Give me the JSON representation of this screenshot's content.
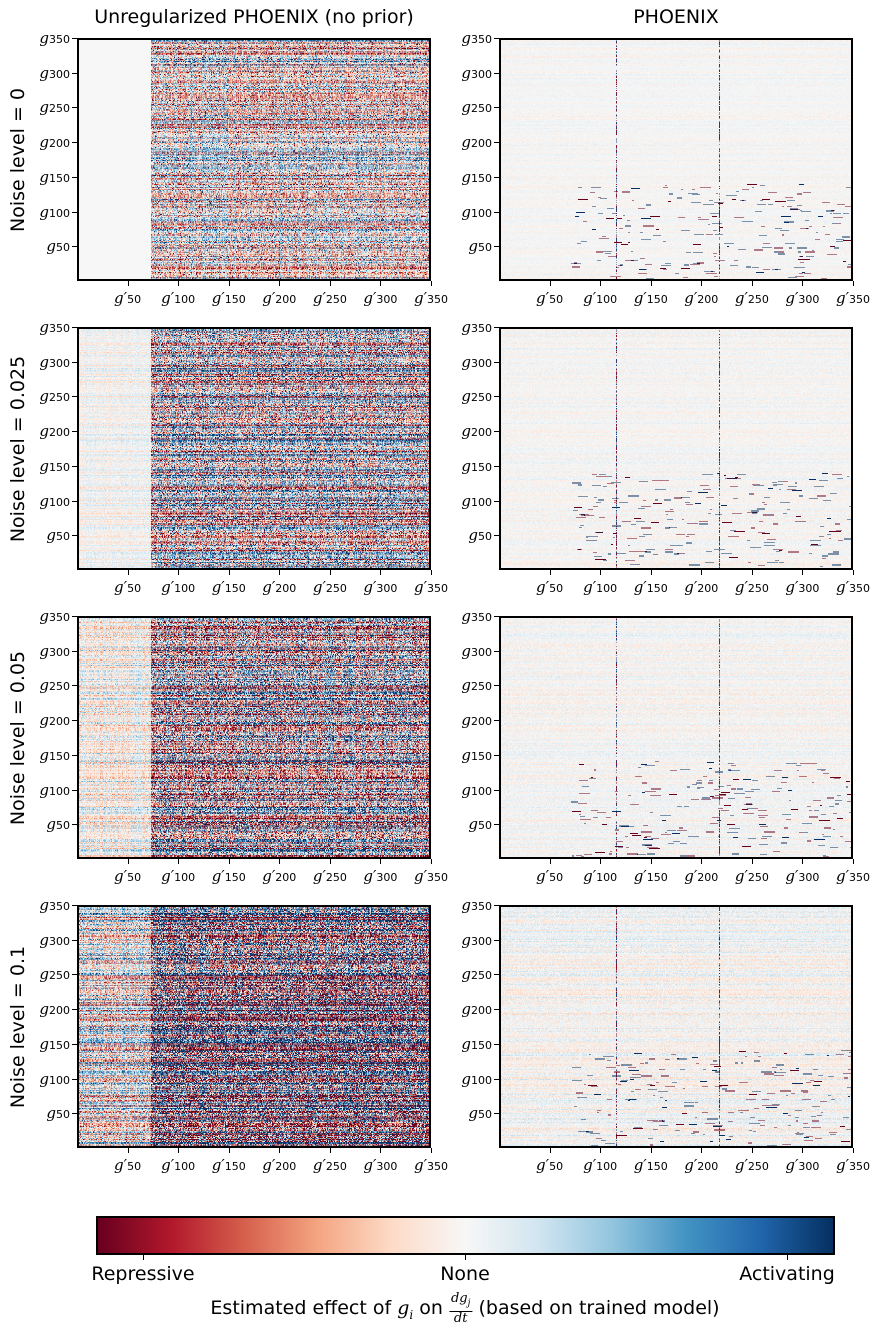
{
  "chart_data": {
    "type": "heatmap",
    "column_titles": [
      "Unregularized PHOENIX (no prior)",
      "PHOENIX"
    ],
    "row_labels": [
      "Noise level = 0",
      "Noise level = 0.025",
      "Noise level = 0.05",
      "Noise level = 0.1"
    ],
    "noise_levels": [
      0,
      0.025,
      0.05,
      0.1
    ],
    "y_ticks": [
      {
        "base": "g",
        "sub": "350",
        "value": 350
      },
      {
        "base": "g",
        "sub": "300",
        "value": 300
      },
      {
        "base": "g",
        "sub": "250",
        "value": 250
      },
      {
        "base": "g",
        "sub": "200",
        "value": 200
      },
      {
        "base": "g",
        "sub": "150",
        "value": 150
      },
      {
        "base": "g",
        "sub": "100",
        "value": 100
      },
      {
        "base": "g",
        "sub": "50",
        "value": 50
      }
    ],
    "x_ticks": [
      {
        "base": "g′",
        "sub": "50",
        "value": 50
      },
      {
        "base": "g′",
        "sub": "100",
        "value": 100
      },
      {
        "base": "g′",
        "sub": "150",
        "value": 150
      },
      {
        "base": "g′",
        "sub": "200",
        "value": 200
      },
      {
        "base": "g′",
        "sub": "250",
        "value": 250
      },
      {
        "base": "g′",
        "sub": "300",
        "value": 300
      },
      {
        "base": "g′",
        "sub": "350",
        "value": 350
      }
    ],
    "axis_range": [
      0,
      350
    ],
    "colorbar": {
      "colormap": "RdBu",
      "colors": [
        "#67001f",
        "#b2182b",
        "#d6604d",
        "#f4a582",
        "#fddbc7",
        "#f7f7f7",
        "#d1e5f0",
        "#92c5de",
        "#4393c3",
        "#2166ac",
        "#053061"
      ],
      "tick_labels": [
        "Repressive",
        "None",
        "Activating"
      ],
      "title_prefix": "Estimated effect of ",
      "title_var": "g",
      "title_var_sub": "i",
      "title_mid": " on ",
      "frac_num": "dg",
      "frac_num_sub": "j",
      "frac_den": "dt",
      "title_suffix": " (based on trained model)"
    }
  }
}
